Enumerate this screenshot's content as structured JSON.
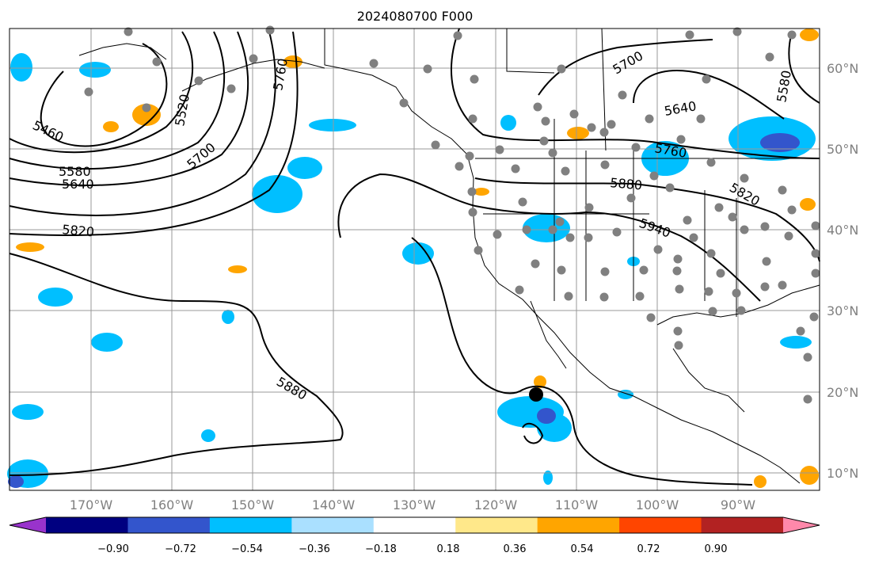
{
  "title": "2024080700 F000",
  "lon_labels": [
    "170°W",
    "160°W",
    "150°W",
    "140°W",
    "130°W",
    "120°W",
    "110°W",
    "100°W",
    "90°W"
  ],
  "lat_labels": [
    "60°N",
    "50°N",
    "40°N",
    "30°N",
    "20°N",
    "10°N"
  ],
  "contour_labels": [
    "5460",
    "5520",
    "5580",
    "5640",
    "5700",
    "5760",
    "5820",
    "5880",
    "5940"
  ],
  "colorbar": {
    "colors": [
      "#9933cc",
      "#000080",
      "#3355cc",
      "#00bfff",
      "#aae0ff",
      "#ffffff",
      "#ffe88a",
      "#ffa500",
      "#ff4500",
      "#b22222",
      "#ff88aa"
    ],
    "tick_labels": [
      "−0.90",
      "−0.72",
      "−0.54",
      "−0.36",
      "−0.18",
      "0.18",
      "0.36",
      "0.54",
      "0.72",
      "0.90"
    ]
  },
  "colors": {
    "grid": "#999999",
    "contour": "#000000",
    "station_dot": "#808080",
    "lat_lon_label": "#808080"
  }
}
